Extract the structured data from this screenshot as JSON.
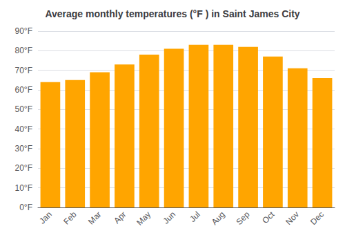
{
  "chart_data": {
    "type": "bar",
    "title": "Average monthly temperatures (°F ) in Saint James City",
    "categories": [
      "Jan",
      "Feb",
      "Mar",
      "Apr",
      "May",
      "Jun",
      "Jul",
      "Aug",
      "Sep",
      "Oct",
      "Nov",
      "Dec"
    ],
    "values": [
      64,
      65,
      69,
      73,
      78,
      81,
      83,
      83,
      82,
      77,
      71,
      66
    ],
    "color": "#FFA500",
    "ylim": [
      0,
      90
    ],
    "yticks": [
      {
        "value": 0,
        "label": "0°F"
      },
      {
        "value": 10,
        "label": "10°F"
      },
      {
        "value": 20,
        "label": "20°F"
      },
      {
        "value": 30,
        "label": "30°F"
      },
      {
        "value": 40,
        "label": "40°F"
      },
      {
        "value": 50,
        "label": "50°F"
      },
      {
        "value": 60,
        "label": "60°F"
      },
      {
        "value": 70,
        "label": "70°F"
      },
      {
        "value": 80,
        "label": "80°F"
      },
      {
        "value": 90,
        "label": "90°F"
      }
    ],
    "grid": true
  }
}
